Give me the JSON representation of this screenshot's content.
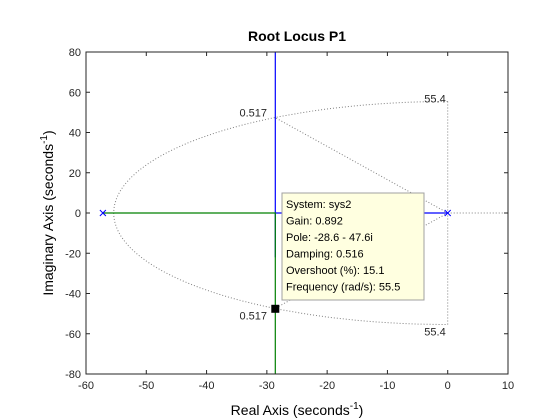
{
  "chart_data": {
    "type": "scatter",
    "title": "Root Locus P1",
    "xlabel": "Real Axis (seconds",
    "ylabel": "Imaginary Axis (seconds",
    "label_exponent": "-1",
    "label_suffix": ")",
    "xlim": [
      -60,
      10
    ],
    "ylim": [
      -80,
      80
    ],
    "x_ticks": [
      -60,
      -50,
      -40,
      -30,
      -20,
      -10,
      0,
      10
    ],
    "y_ticks": [
      -80,
      -60,
      -40,
      -20,
      0,
      20,
      40,
      60,
      80
    ],
    "colors": {
      "blue": "#0000ff",
      "green": "#008000",
      "grid": "#808080",
      "tip_bg": "#ffffe0"
    },
    "poles": [
      {
        "x": -57.2,
        "y": 0
      },
      {
        "x": 0,
        "y": 0
      }
    ],
    "branches": [
      {
        "color": "blue",
        "points": [
          [
            0,
            0
          ],
          [
            -28.6,
            0
          ],
          [
            -28.6,
            80
          ]
        ]
      },
      {
        "color": "blue",
        "points": [
          [
            -28.6,
            0
          ],
          [
            -28.6,
            -22
          ]
        ]
      },
      {
        "color": "green",
        "points": [
          [
            -57.2,
            0
          ],
          [
            -28.6,
            0
          ],
          [
            -28.6,
            -80
          ]
        ]
      }
    ],
    "damping_line": {
      "zeta": 0.517,
      "label": "0.517",
      "labels_at": [
        "upper",
        "lower"
      ]
    },
    "frequency_circle": {
      "wn": 55.4,
      "label": "55.4",
      "labels_at": [
        "upper",
        "lower"
      ]
    },
    "marker": {
      "x": -28.6,
      "y": -47.6
    },
    "datatip": [
      "System: sys2",
      "Gain: 0.892",
      "Pole: -28.6 - 47.6i",
      "Damping: 0.516",
      "Overshoot (%): 15.1",
      "Frequency (rad/s): 55.5"
    ]
  }
}
